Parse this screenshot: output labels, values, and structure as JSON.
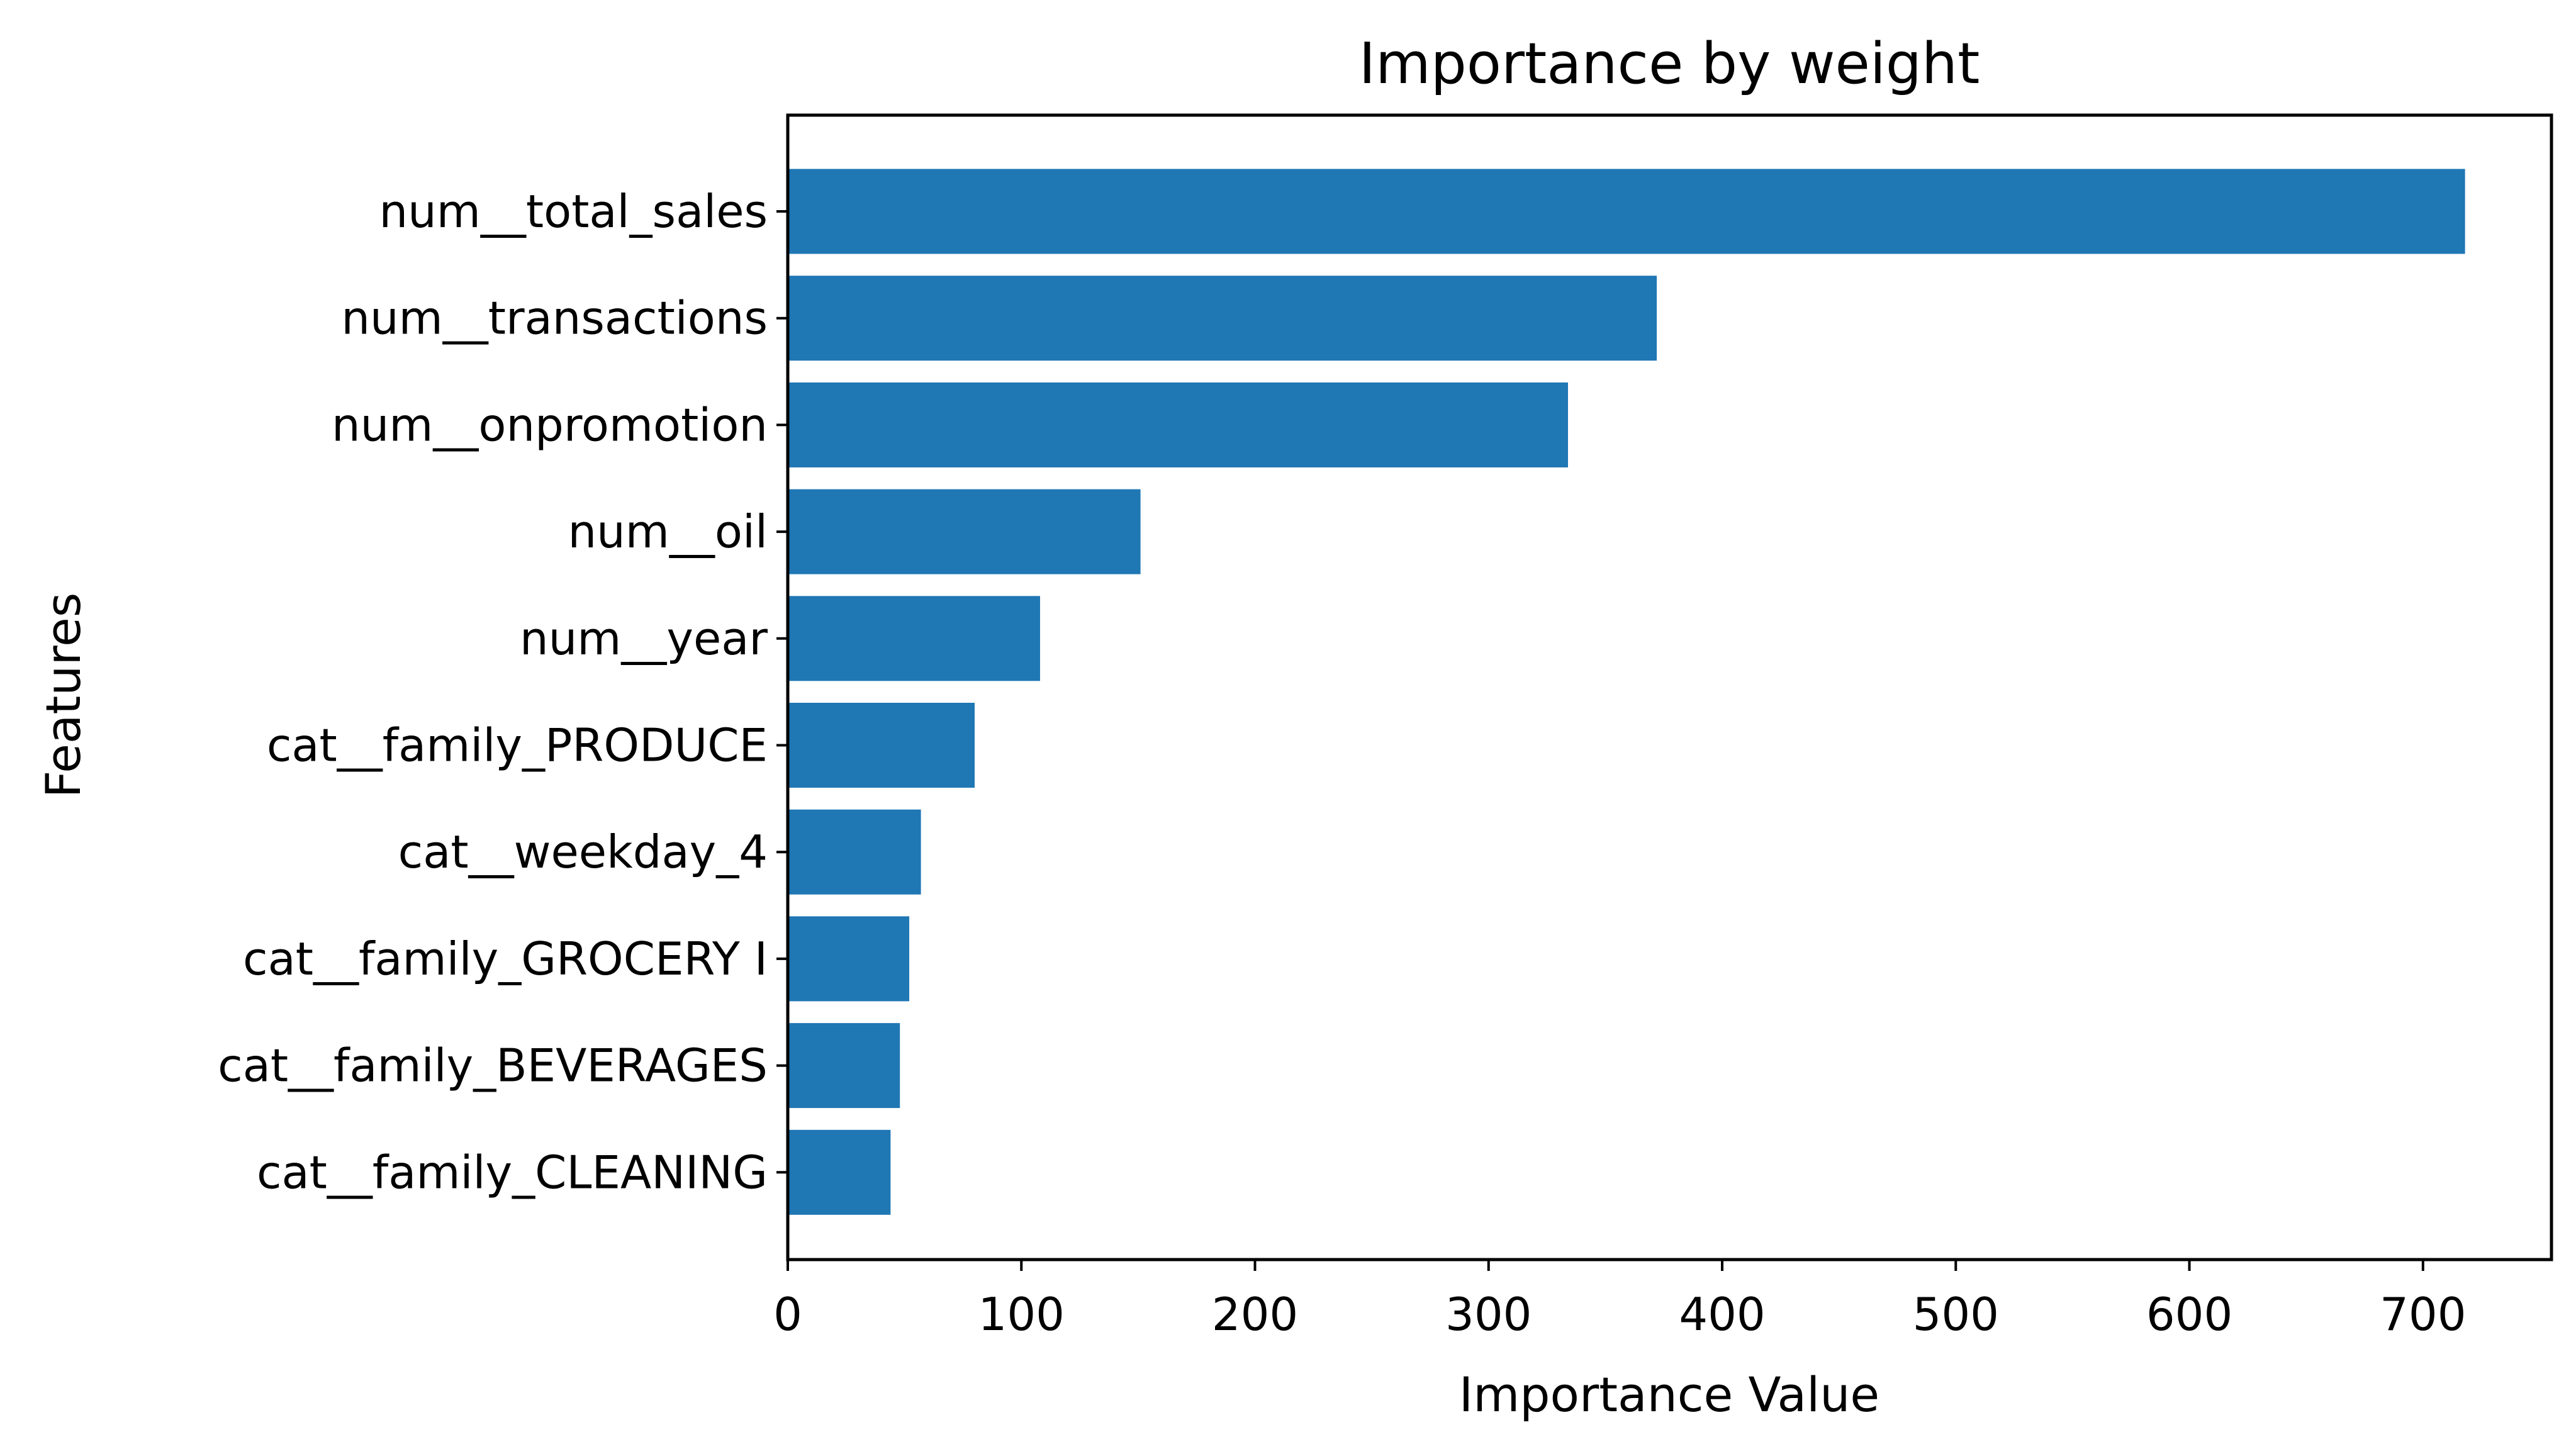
{
  "chart_data": {
    "type": "bar",
    "orientation": "horizontal",
    "title": "Importance by weight",
    "xlabel": "Importance Value",
    "ylabel": "Features",
    "categories": [
      "num__total_sales",
      "num__transactions",
      "num__onpromotion",
      "num__oil",
      "num__year",
      "cat__family_PRODUCE",
      "cat__weekday_4",
      "cat__family_GROCERY I",
      "cat__family_BEVERAGES",
      "cat__family_CLEANING"
    ],
    "values": [
      718,
      372,
      334,
      151,
      108,
      80,
      57,
      52,
      48,
      44
    ],
    "xlim": [
      0,
      755
    ],
    "xticks": [
      0,
      100,
      200,
      300,
      400,
      500,
      600,
      700
    ],
    "grid": false,
    "legend": false,
    "bar_color": "#1f77b4"
  }
}
